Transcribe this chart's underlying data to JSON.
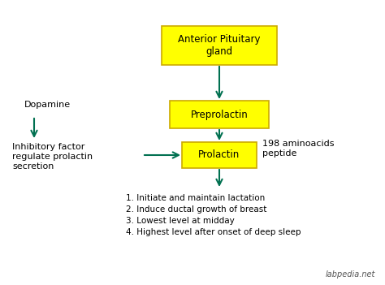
{
  "bg_color": "#ffffff",
  "box_fill": "#ffff00",
  "box_edge": "#ccaa00",
  "arrow_color": "#007050",
  "text_color": "#000000",
  "box1_label": "Anterior Pituitary\ngland",
  "box2_label": "Preprolactin",
  "box3_label": "Prolactin",
  "dopamine_label": "Dopamine",
  "inhibitory_label": "Inhibitory factor\nregulate prolactin\nsecretion",
  "aminoacids_label": "198 aminoacids\npeptide",
  "functions_label": "1. Initiate and maintain lactation\n2. Induce ductal growth of breast\n3. Lowest level at midday\n4. Highest level after onset of deep sleep",
  "watermark": "labpedia.net",
  "font_size_box": 8.5,
  "font_size_small": 8,
  "font_size_watermark": 7
}
